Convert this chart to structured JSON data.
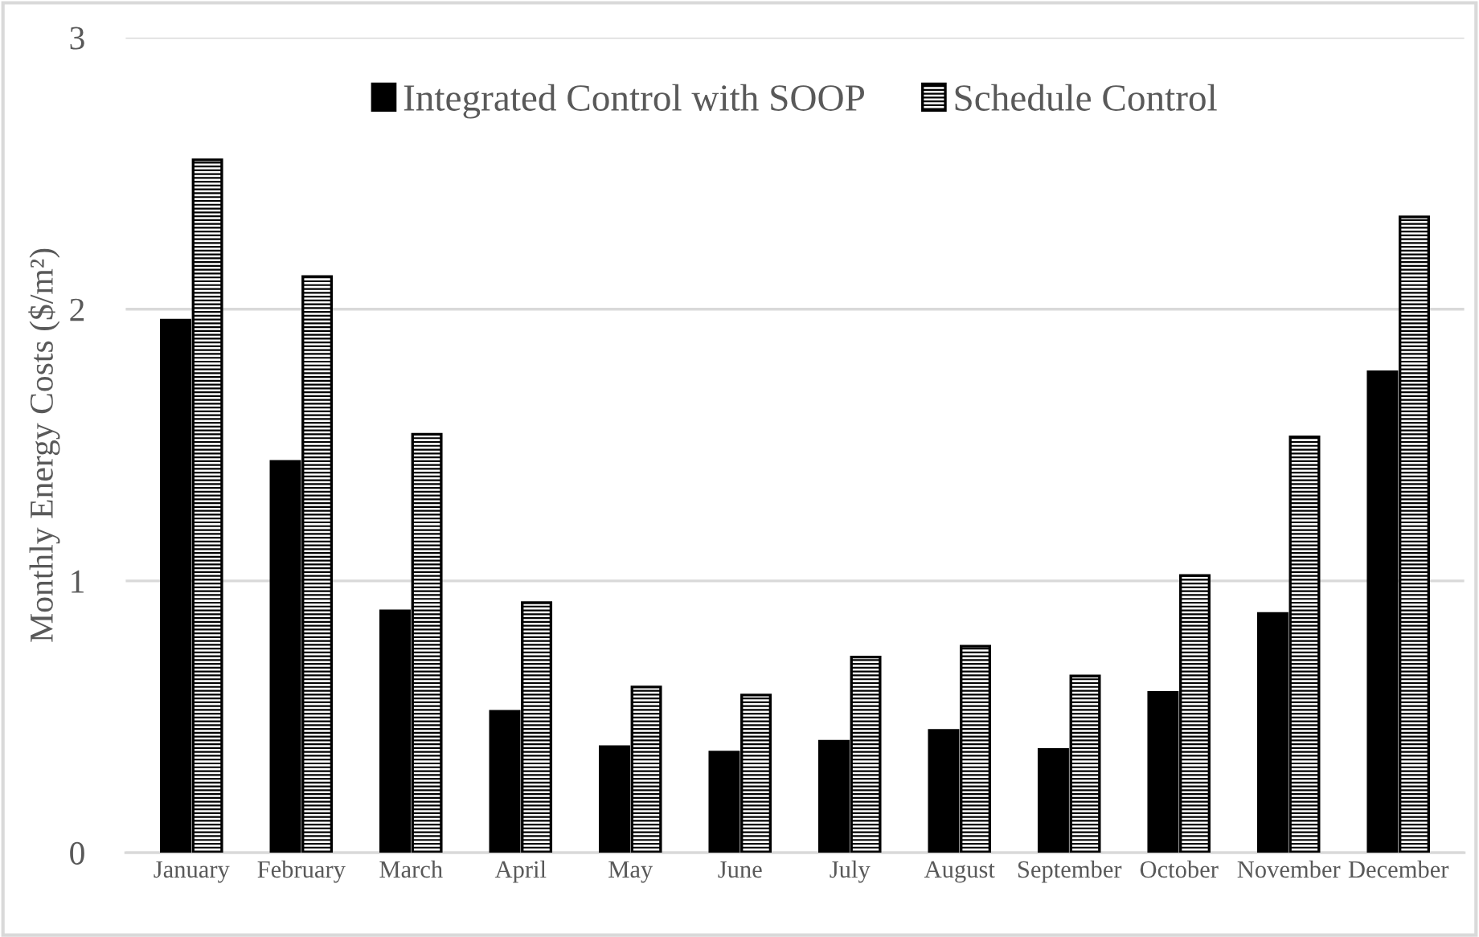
{
  "chart_data": {
    "type": "bar",
    "ylabel": "Monthly Energy Costs ($/m²)",
    "categories": [
      "January",
      "February",
      "March",
      "April",
      "May",
      "June",
      "July",
      "August",
      "September",
      "October",
      "November",
      "December"
    ],
    "series": [
      {
        "name": "Integrated Control with SOOP",
        "color": "#000000",
        "values": [
          1.96,
          1.44,
          0.89,
          0.52,
          0.39,
          0.37,
          0.41,
          0.45,
          0.38,
          0.59,
          0.88,
          1.77
        ]
      },
      {
        "name": "Schedule Control",
        "color": "#000000",
        "values": [
          2.55,
          2.12,
          1.54,
          0.92,
          0.61,
          0.58,
          0.72,
          0.76,
          0.65,
          1.02,
          1.53,
          2.34
        ]
      }
    ],
    "ylim": [
      0,
      3
    ],
    "yticks": [
      0,
      1,
      2,
      3
    ],
    "grid": "y",
    "legend": "top"
  }
}
